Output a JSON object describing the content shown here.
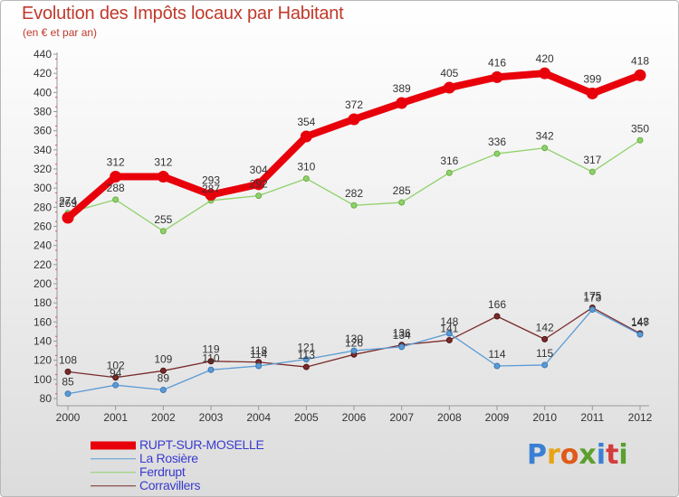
{
  "header": {
    "title": "Evolution des Impôts locaux par Habitant",
    "subtitle": "(en € et par an)"
  },
  "logo": {
    "text": "Proxiti",
    "letter_colors": [
      "#3b7fd4",
      "#e8a417",
      "#e05a1a",
      "#5aa02c",
      "#3b7fd4",
      "#d43b3b",
      "#5aa02c"
    ]
  },
  "chart_data": {
    "type": "line",
    "x": [
      2000,
      2001,
      2002,
      2003,
      2004,
      2005,
      2006,
      2007,
      2008,
      2009,
      2010,
      2011,
      2012
    ],
    "ylim": [
      80,
      440
    ],
    "yticks": [
      80,
      100,
      120,
      140,
      160,
      180,
      200,
      220,
      240,
      260,
      280,
      300,
      320,
      340,
      360,
      380,
      400,
      420,
      440
    ],
    "grid": false,
    "legend_position": "bottom-left",
    "series": [
      {
        "name": "RUPT-SUR-MOSELLE",
        "color": "#e8000b",
        "values": [
          269,
          312,
          312,
          293,
          304,
          354,
          372,
          389,
          405,
          416,
          420,
          399,
          418
        ],
        "labels": [
          "269",
          "312",
          "312",
          "293",
          "304",
          "354",
          "372",
          "389",
          "405",
          "416",
          "420",
          "399",
          "418"
        ]
      },
      {
        "name": "La Rosière",
        "color": "#5b9bd5",
        "values": [
          85,
          94,
          89,
          110,
          114,
          121,
          130,
          134,
          148,
          114,
          115,
          173,
          147
        ],
        "labels": [
          "85",
          "94",
          "89",
          "110",
          "114",
          "121",
          "130",
          "134",
          "148",
          "114",
          "115",
          "173",
          "147"
        ]
      },
      {
        "name": "Ferdrupt",
        "color": "#8fd16a",
        "values": [
          274,
          288,
          255,
          287,
          292,
          310,
          282,
          285,
          316,
          336,
          342,
          317,
          350
        ],
        "labels": [
          "274",
          "288",
          "255",
          "287",
          "292",
          "310",
          "282",
          "285",
          "316",
          "336",
          "342",
          "317",
          "350"
        ]
      },
      {
        "name": "Corravillers",
        "color": "#7a2a2a",
        "values": [
          108,
          102,
          109,
          119,
          118,
          113,
          126,
          136,
          141,
          166,
          142,
          175,
          148
        ],
        "labels": [
          "108",
          "102",
          "109",
          "119",
          "118",
          "113",
          "126",
          "136",
          "141",
          "166",
          "142",
          "175",
          "148"
        ]
      }
    ]
  }
}
